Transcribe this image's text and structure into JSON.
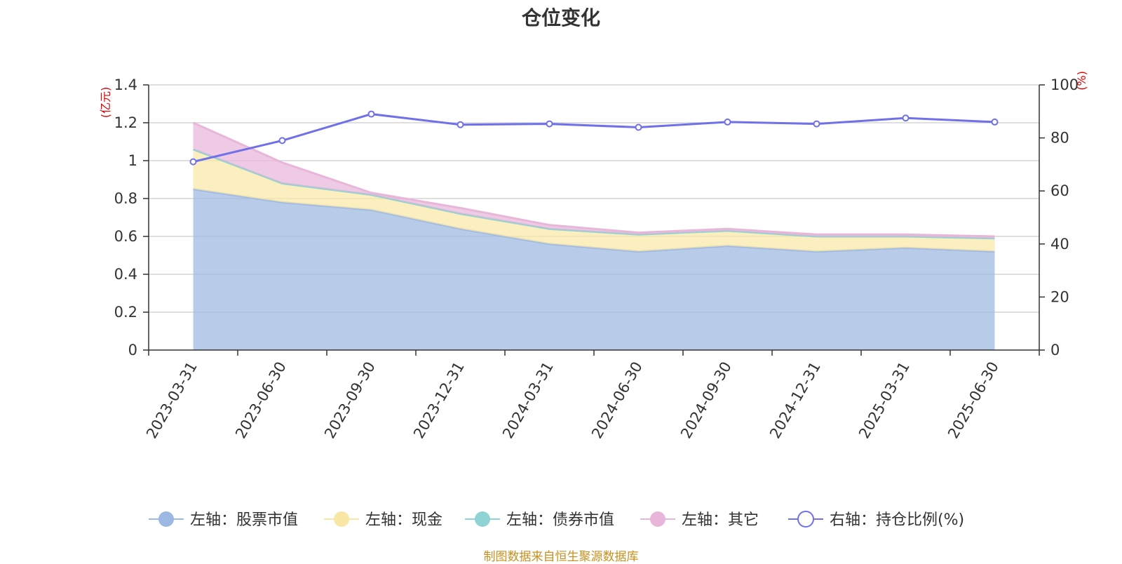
{
  "chart_data": {
    "type": "area",
    "title": "仓位变化",
    "y_left_unit": "(亿元)",
    "y_right_unit": "(%)",
    "categories": [
      "2023-03-31",
      "2023-06-30",
      "2023-09-30",
      "2023-12-31",
      "2024-03-31",
      "2024-06-30",
      "2024-09-30",
      "2024-12-31",
      "2025-03-31",
      "2025-06-30"
    ],
    "ylim_left": [
      0,
      1.4
    ],
    "ylim_right": [
      0,
      100
    ],
    "y_left_ticks": [
      "0",
      "0.2",
      "0.4",
      "0.6",
      "0.8",
      "1",
      "1.2",
      "1.4"
    ],
    "y_right_ticks": [
      "0",
      "20",
      "40",
      "60",
      "80",
      "100"
    ],
    "grid": true,
    "legend_position": "bottom",
    "series": [
      {
        "name": "左轴：股票市值",
        "axis": "left",
        "type": "area",
        "stacked": true,
        "color": "#9db8e2",
        "values": [
          0.85,
          0.78,
          0.74,
          0.64,
          0.56,
          0.52,
          0.55,
          0.52,
          0.54,
          0.52
        ]
      },
      {
        "name": "左轴：现金",
        "axis": "left",
        "type": "area",
        "stacked": true,
        "color": "#f9e7a6",
        "values": [
          0.21,
          0.1,
          0.08,
          0.08,
          0.08,
          0.09,
          0.08,
          0.08,
          0.06,
          0.07
        ]
      },
      {
        "name": "左轴：债券市值",
        "axis": "left",
        "type": "area",
        "stacked": true,
        "color": "#8fd3d4",
        "values": [
          0,
          0,
          0,
          0,
          0,
          0,
          0,
          0,
          0,
          0
        ]
      },
      {
        "name": "左轴：其它",
        "axis": "left",
        "type": "area",
        "stacked": true,
        "color": "#e8b6d9",
        "values": [
          0.14,
          0.11,
          0.01,
          0.03,
          0.02,
          0.01,
          0.01,
          0.01,
          0.01,
          0.01
        ]
      },
      {
        "name": "右轴：持仓比例(%)",
        "axis": "right",
        "type": "line",
        "color": "#7070e8",
        "values": [
          71,
          79,
          89,
          85,
          85.3,
          84,
          86,
          85.3,
          87.5,
          86
        ]
      }
    ]
  },
  "source_note": "制图数据来自恒生聚源数据库"
}
